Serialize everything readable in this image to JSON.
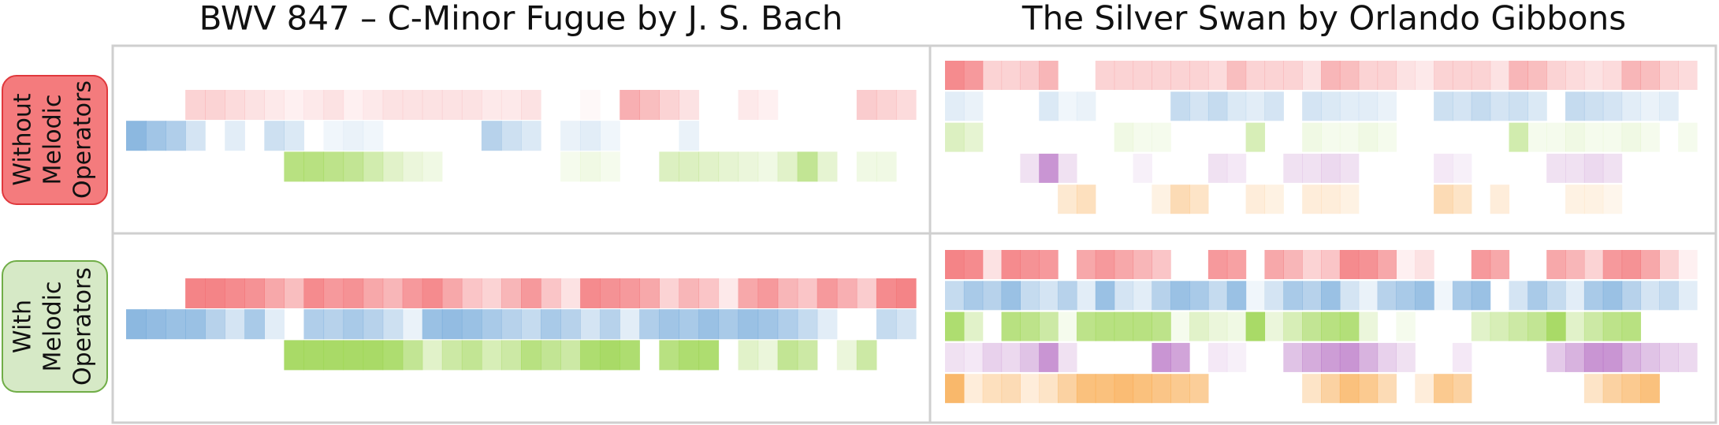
{
  "row_labels": [
    [
      "Without",
      "Melodic",
      "Operators"
    ],
    [
      "With",
      "Melodic",
      "Operators"
    ]
  ],
  "pieces": [
    {
      "title": "BWV 847 – C-Minor Fugue by J. S. Bach",
      "conditions": [
        {
          "voices": [
            {
              "color": "#f26e72",
              "values": [
                null,
                null,
                null,
                0.3,
                0.3,
                0.25,
                0.2,
                0.15,
                0.1,
                0.15,
                0.2,
                0.1,
                0.15,
                0.2,
                0.2,
                0.2,
                0.2,
                0.2,
                0.15,
                0.15,
                0.2,
                null,
                null,
                0.05,
                null,
                0.55,
                0.45,
                0.3,
                0.2,
                null,
                null,
                0.15,
                0.1,
                null,
                null,
                null,
                null,
                0.35,
                0.3,
                0.25
              ]
            },
            {
              "color": "#6fa6d8",
              "values": [
                0.8,
                0.65,
                0.55,
                0.3,
                null,
                0.2,
                null,
                0.35,
                0.25,
                null,
                0.1,
                0.15,
                0.1,
                null,
                null,
                null,
                null,
                null,
                0.5,
                0.35,
                0.25,
                null,
                0.15,
                0.2,
                0.1,
                null,
                null,
                null,
                0.15,
                null,
                null,
                null,
                null,
                null,
                null,
                null,
                null,
                null,
                null,
                null
              ]
            },
            {
              "color": "#9ad44c",
              "values": [
                null,
                null,
                null,
                null,
                null,
                null,
                null,
                null,
                0.7,
                0.7,
                0.65,
                0.6,
                0.45,
                0.3,
                0.2,
                0.15,
                null,
                null,
                null,
                null,
                null,
                null,
                0.1,
                0.15,
                0.1,
                null,
                null,
                0.35,
                0.35,
                0.3,
                0.25,
                0.2,
                0.15,
                0.3,
                0.6,
                0.25,
                null,
                0.15,
                0.15,
                null
              ]
            }
          ]
        },
        {
          "voices": [
            {
              "color": "#f26e72",
              "values": [
                null,
                null,
                null,
                0.85,
                0.85,
                0.8,
                0.75,
                0.6,
                0.45,
                0.8,
                0.7,
                0.75,
                0.6,
                0.5,
                0.7,
                0.8,
                0.6,
                0.4,
                0.3,
                0.5,
                0.7,
                0.4,
                0.2,
                0.8,
                0.75,
                0.7,
                0.6,
                0.3,
                0.5,
                0.4,
                0.15,
                0.6,
                0.7,
                0.5,
                0.4,
                0.7,
                0.55,
                0.35,
                0.8,
                0.85
              ]
            },
            {
              "color": "#6fa6d8",
              "values": [
                0.8,
                0.75,
                0.7,
                0.7,
                0.5,
                0.3,
                0.6,
                0.2,
                null,
                0.55,
                0.5,
                0.6,
                0.5,
                0.35,
                0.15,
                0.7,
                0.75,
                0.7,
                0.6,
                0.5,
                0.4,
                0.6,
                0.5,
                0.3,
                0.5,
                0.2,
                0.55,
                0.65,
                0.6,
                0.7,
                0.6,
                0.7,
                0.65,
                0.55,
                0.4,
                0.2,
                null,
                null,
                0.4,
                0.3
              ]
            },
            {
              "color": "#9ad44c",
              "values": [
                null,
                null,
                null,
                null,
                null,
                null,
                null,
                null,
                0.85,
                0.85,
                0.85,
                0.85,
                0.85,
                0.8,
                0.6,
                0.3,
                0.5,
                0.6,
                0.4,
                0.5,
                0.7,
                0.6,
                0.5,
                0.8,
                0.85,
                0.8,
                null,
                0.7,
                0.8,
                0.8,
                null,
                0.3,
                0.2,
                0.6,
                0.5,
                null,
                0.2,
                0.5,
                null,
                null
              ]
            }
          ]
        }
      ]
    },
    {
      "title": "The Silver Swan by Orlando Gibbons",
      "conditions": [
        {
          "voices": [
            {
              "color": "#f26e72",
              "values": [
                0.8,
                0.7,
                0.3,
                0.3,
                0.35,
                0.5,
                null,
                null,
                0.3,
                0.3,
                0.3,
                0.3,
                0.3,
                0.3,
                0.25,
                0.45,
                0.3,
                0.3,
                0.3,
                0.2,
                0.5,
                0.45,
                0.3,
                0.3,
                0.2,
                0.15,
                0.3,
                0.3,
                0.3,
                0.2,
                0.5,
                0.45,
                0.3,
                0.25,
                0.2,
                0.25,
                0.5,
                0.45,
                0.3,
                0.25
              ]
            },
            {
              "color": "#6fa6d8",
              "values": [
                0.2,
                0.15,
                null,
                null,
                null,
                0.25,
                0.1,
                0.15,
                null,
                null,
                null,
                null,
                0.4,
                0.3,
                0.4,
                0.25,
                0.2,
                0.3,
                null,
                0.3,
                0.25,
                0.2,
                0.2,
                0.15,
                null,
                null,
                0.35,
                0.3,
                0.4,
                0.3,
                0.35,
                0.25,
                null,
                0.4,
                0.35,
                0.3,
                0.2,
                0.15,
                0.2,
                null
              ]
            },
            {
              "color": "#9ad44c",
              "values": [
                0.35,
                0.25,
                null,
                null,
                null,
                null,
                null,
                null,
                null,
                0.15,
                0.1,
                0.1,
                null,
                null,
                null,
                null,
                0.4,
                null,
                null,
                0.15,
                0.1,
                0.1,
                0.15,
                0.1,
                null,
                null,
                null,
                null,
                null,
                null,
                0.45,
                0.1,
                0.1,
                0.15,
                0.1,
                0.1,
                0.15,
                0.1,
                null,
                0.1
              ]
            },
            {
              "color": "#b268c0",
              "values": [
                null,
                null,
                null,
                null,
                0.2,
                0.7,
                0.2,
                null,
                null,
                null,
                0.1,
                null,
                null,
                null,
                0.2,
                0.15,
                null,
                null,
                0.2,
                0.2,
                0.25,
                0.2,
                null,
                null,
                null,
                null,
                0.15,
                0.1,
                null,
                null,
                null,
                null,
                0.2,
                0.2,
                0.25,
                0.2,
                null,
                null,
                null,
                null
              ]
            },
            {
              "color": "#f8a646",
              "values": [
                null,
                null,
                null,
                null,
                null,
                null,
                0.25,
                0.35,
                null,
                null,
                null,
                0.15,
                0.4,
                0.3,
                null,
                null,
                0.2,
                0.15,
                null,
                0.2,
                0.2,
                0.15,
                null,
                null,
                null,
                null,
                0.4,
                0.3,
                null,
                0.2,
                null,
                null,
                null,
                0.15,
                0.15,
                0.1,
                null,
                null,
                null,
                null
              ]
            }
          ]
        },
        {
          "voices": [
            {
              "color": "#f26e72",
              "values": [
                0.85,
                0.8,
                0.2,
                0.8,
                0.75,
                0.7,
                null,
                0.6,
                0.7,
                0.6,
                0.5,
                0.4,
                null,
                null,
                0.7,
                0.65,
                null,
                0.6,
                0.5,
                0.3,
                0.4,
                0.8,
                0.75,
                0.6,
                0.1,
                0.2,
                null,
                null,
                0.7,
                0.6,
                null,
                null,
                0.6,
                0.5,
                0.3,
                0.7,
                0.75,
                0.6,
                0.3,
                0.1
              ]
            },
            {
              "color": "#6fa6d8",
              "values": [
                0.4,
                0.6,
                0.5,
                0.7,
                0.4,
                0.3,
                0.5,
                0.2,
                0.7,
                0.3,
                0.2,
                0.5,
                0.7,
                0.6,
                0.4,
                0.7,
                0.1,
                0.3,
                0.6,
                0.5,
                0.7,
                0.3,
                0.15,
                0.5,
                0.6,
                0.7,
                0.1,
                0.6,
                0.7,
                null,
                0.3,
                0.6,
                0.4,
                0.2,
                0.6,
                0.7,
                0.5,
                0.3,
                0.4,
                0.2
              ]
            },
            {
              "color": "#9ad44c",
              "values": [
                0.8,
                0.3,
                null,
                0.7,
                0.65,
                0.5,
                0.1,
                0.65,
                0.7,
                0.7,
                0.7,
                0.65,
                0.1,
                0.3,
                0.2,
                0.15,
                0.85,
                0.2,
                0.4,
                0.6,
                0.7,
                0.75,
                0.2,
                null,
                0.1,
                null,
                null,
                null,
                0.3,
                0.4,
                0.5,
                0.6,
                0.85,
                0.3,
                0.5,
                0.65,
                0.7,
                null,
                null,
                null
              ]
            },
            {
              "color": "#b268c0",
              "values": [
                0.2,
                0.15,
                0.3,
                0.25,
                0.4,
                0.7,
                0.2,
                null,
                null,
                null,
                null,
                0.7,
                0.6,
                null,
                0.15,
                0.1,
                null,
                null,
                0.4,
                0.55,
                0.65,
                0.7,
                0.5,
                0.3,
                0.2,
                null,
                null,
                0.15,
                null,
                null,
                null,
                null,
                0.35,
                0.5,
                0.7,
                0.7,
                0.5,
                0.4,
                0.3,
                0.25
              ]
            },
            {
              "color": "#f8a646",
              "values": [
                0.8,
                0.2,
                0.35,
                0.4,
                0.2,
                0.3,
                0.5,
                0.7,
                0.7,
                0.75,
                0.7,
                0.65,
                0.6,
                0.55,
                null,
                null,
                null,
                null,
                null,
                0.3,
                0.5,
                0.7,
                0.6,
                0.4,
                null,
                0.2,
                0.6,
                0.5,
                null,
                null,
                null,
                null,
                null,
                null,
                0.3,
                0.5,
                0.6,
                0.7,
                null,
                null
              ]
            }
          ]
        }
      ]
    }
  ]
}
